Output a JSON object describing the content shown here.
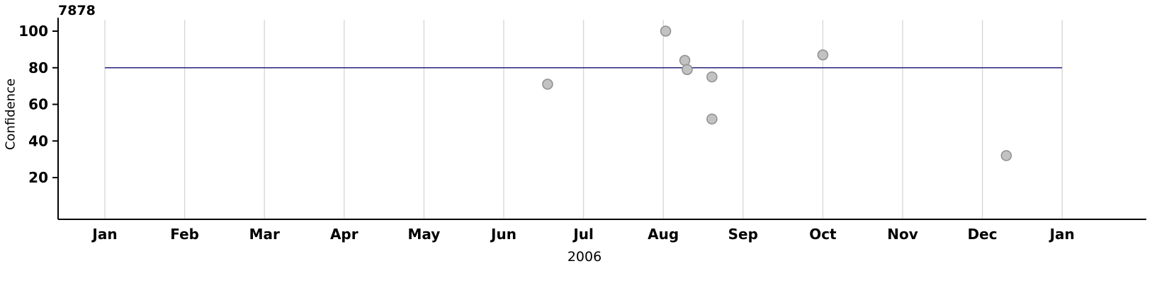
{
  "chart_data": {
    "type": "scatter",
    "title": "7878",
    "xlabel": "2006",
    "ylabel": "Confidence",
    "x_tick_labels": [
      "Jan",
      "Feb",
      "Mar",
      "Apr",
      "May",
      "Jun",
      "Jul",
      "Aug",
      "Sep",
      "Oct",
      "Nov",
      "Dec",
      "Jan"
    ],
    "y_ticks": [
      20,
      40,
      60,
      80,
      100
    ],
    "ylim": [
      0,
      105
    ],
    "grid": "vertical-only",
    "legend": "none",
    "reference_line": {
      "y": 80,
      "color": "#242478"
    },
    "points": [
      {
        "x": 5.55,
        "y": 71
      },
      {
        "x": 7.03,
        "y": 100
      },
      {
        "x": 7.27,
        "y": 84
      },
      {
        "x": 7.3,
        "y": 79
      },
      {
        "x": 7.61,
        "y": 75
      },
      {
        "x": 7.61,
        "y": 52
      },
      {
        "x": 9.0,
        "y": 87
      },
      {
        "x": 11.3,
        "y": 32
      }
    ],
    "point_style": {
      "fill": "#c2c2c2",
      "stroke": "#8f8f8f",
      "radius": 7
    },
    "axis_color": "#000000",
    "grid_color": "#d6d6d6"
  }
}
